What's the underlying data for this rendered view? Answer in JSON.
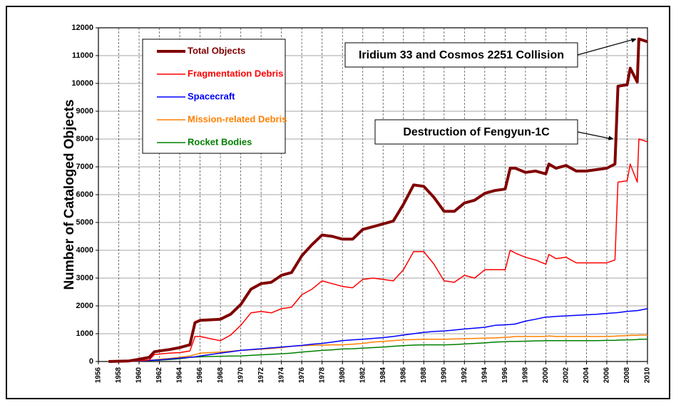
{
  "chart_data": {
    "type": "line",
    "y_label": "Number of Cataloged Objects",
    "x": [
      1957,
      1959,
      1960,
      1961,
      1961.5,
      1962,
      1963,
      1964,
      1965,
      1965.5,
      1966,
      1967,
      1968,
      1969,
      1970,
      1971,
      1972,
      1973,
      1974,
      1975,
      1976,
      1977,
      1978,
      1979,
      1980,
      1981,
      1982,
      1983,
      1984,
      1985,
      1986,
      1987,
      1988,
      1989,
      1990,
      1991,
      1992,
      1993,
      1994,
      1995,
      1996,
      1996.5,
      1997,
      1998,
      1999,
      2000,
      2000.3,
      2001,
      2002,
      2003,
      2004,
      2005,
      2006,
      2006.8,
      2007.1,
      2008,
      2008.3,
      2009,
      2009.15,
      2010
    ],
    "series": [
      {
        "name": "Total Objects",
        "color": "#800000",
        "width": 4,
        "values": [
          0,
          20,
          80,
          150,
          350,
          380,
          430,
          500,
          600,
          1400,
          1480,
          1500,
          1520,
          1700,
          2050,
          2600,
          2800,
          2850,
          3100,
          3200,
          3800,
          4200,
          4550,
          4500,
          4400,
          4400,
          4750,
          4850,
          4950,
          5050,
          5650,
          6350,
          6300,
          5900,
          5400,
          5400,
          5700,
          5800,
          6050,
          6150,
          6200,
          6950,
          6950,
          6800,
          6850,
          6750,
          7100,
          6950,
          7050,
          6850,
          6850,
          6900,
          6950,
          7100,
          9900,
          9950,
          10550,
          10050,
          11600,
          11500
        ]
      },
      {
        "name": "Fragmentation Debris",
        "color": "#ff0000",
        "width": 1.5,
        "values": [
          0,
          5,
          30,
          60,
          250,
          270,
          300,
          320,
          380,
          900,
          900,
          820,
          750,
          950,
          1300,
          1750,
          1800,
          1750,
          1900,
          1950,
          2400,
          2600,
          2900,
          2800,
          2700,
          2650,
          2950,
          3000,
          2950,
          2900,
          3300,
          3950,
          3950,
          3500,
          2900,
          2850,
          3100,
          3000,
          3300,
          3300,
          3300,
          4000,
          3900,
          3750,
          3650,
          3500,
          3850,
          3700,
          3750,
          3550,
          3550,
          3550,
          3550,
          3650,
          6450,
          6500,
          7100,
          6450,
          8000,
          7900
        ]
      },
      {
        "name": "Spacecraft",
        "color": "#0000ff",
        "width": 1.5,
        "values": [
          0,
          10,
          20,
          40,
          50,
          60,
          90,
          120,
          150,
          170,
          200,
          250,
          300,
          350,
          400,
          430,
          460,
          490,
          520,
          550,
          580,
          620,
          650,
          700,
          750,
          780,
          800,
          830,
          860,
          900,
          950,
          1000,
          1050,
          1080,
          1100,
          1130,
          1170,
          1200,
          1230,
          1300,
          1320,
          1330,
          1350,
          1450,
          1520,
          1600,
          1600,
          1620,
          1640,
          1660,
          1680,
          1700,
          1730,
          1750,
          1760,
          1800,
          1810,
          1830,
          1840,
          1900
        ]
      },
      {
        "name": "Mission-related Debris",
        "color": "#ff8000",
        "width": 1.5,
        "values": [
          0,
          5,
          15,
          40,
          60,
          80,
          110,
          150,
          200,
          250,
          300,
          320,
          340,
          370,
          400,
          420,
          440,
          470,
          500,
          550,
          570,
          580,
          590,
          600,
          600,
          620,
          650,
          700,
          720,
          750,
          780,
          790,
          800,
          800,
          800,
          810,
          820,
          830,
          840,
          850,
          870,
          880,
          900,
          900,
          900,
          900,
          920,
          900,
          900,
          900,
          900,
          900,
          900,
          910,
          920,
          930,
          940,
          940,
          950,
          950
        ]
      },
      {
        "name": "Rocket Bodies",
        "color": "#008000",
        "width": 1.5,
        "values": [
          0,
          5,
          15,
          30,
          40,
          50,
          70,
          100,
          150,
          160,
          170,
          180,
          190,
          195,
          200,
          220,
          240,
          260,
          280,
          300,
          340,
          370,
          400,
          420,
          450,
          460,
          480,
          500,
          520,
          550,
          570,
          590,
          600,
          600,
          600,
          610,
          630,
          650,
          670,
          700,
          710,
          720,
          720,
          730,
          740,
          750,
          750,
          750,
          750,
          750,
          750,
          750,
          760,
          760,
          770,
          780,
          780,
          790,
          800,
          800
        ]
      }
    ],
    "xlim": [
      1956,
      2010
    ],
    "xticks": [
      1956,
      1958,
      1960,
      1962,
      1964,
      1966,
      1968,
      1970,
      1972,
      1974,
      1976,
      1978,
      1980,
      1982,
      1984,
      1986,
      1988,
      1990,
      1992,
      1994,
      1996,
      1998,
      2000,
      2002,
      2004,
      2006,
      2008,
      2010
    ],
    "ylim": [
      0,
      12000
    ],
    "yticks": [
      0,
      1000,
      2000,
      3000,
      4000,
      5000,
      6000,
      7000,
      8000,
      9000,
      10000,
      11000,
      12000
    ],
    "grid": true,
    "legend": "upper left",
    "annotations": [
      "Iridium 33 and Cosmos 2251 Collision",
      "Destruction of Fengyun-1C"
    ]
  }
}
